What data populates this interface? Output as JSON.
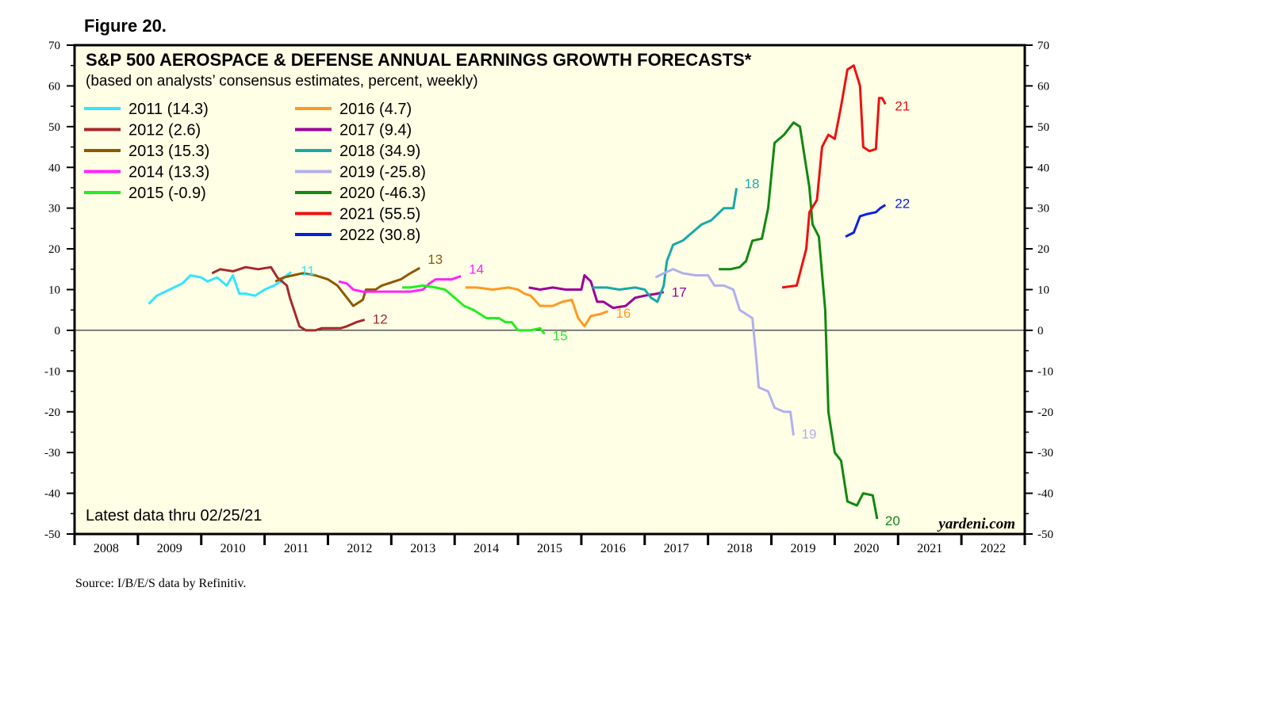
{
  "figure_label": "Figure 20.",
  "source": "Source: I/B/E/S data by Refinitiv.",
  "chart_data": {
    "type": "line",
    "title": "S&P 500 AEROSPACE & DEFENSE ANNUAL EARNINGS GROWTH FORECASTS*",
    "subtitle": "(based on analysts’ consensus estimates, percent, weekly)",
    "note": "Latest data thru 02/25/21",
    "watermark": "yardeni.com",
    "xlabel": "",
    "ylabel": "",
    "xlim": [
      2008,
      2023
    ],
    "ylim": [
      -50,
      70
    ],
    "yticks": [
      "70",
      "60",
      "50",
      "40",
      "30",
      "20",
      "10",
      "0",
      "-10",
      "-20",
      "-30",
      "-40",
      "-50"
    ],
    "xticks": [
      "2008",
      "2009",
      "2010",
      "2011",
      "2012",
      "2013",
      "2014",
      "2015",
      "2016",
      "2017",
      "2018",
      "2019",
      "2020",
      "2021",
      "2022"
    ],
    "zero_line": true,
    "legend_position": "top-left",
    "series": [
      {
        "name": "2011 (14.3)",
        "end_label": "11",
        "color": "#33e5ff",
        "points": [
          [
            2009.17,
            6.5
          ],
          [
            2009.3,
            8.5
          ],
          [
            2009.5,
            10
          ],
          [
            2009.7,
            11.5
          ],
          [
            2009.83,
            13.5
          ],
          [
            2010.0,
            13
          ],
          [
            2010.1,
            12
          ],
          [
            2010.25,
            13
          ],
          [
            2010.4,
            11
          ],
          [
            2010.5,
            13.5
          ],
          [
            2010.6,
            9
          ],
          [
            2010.7,
            9
          ],
          [
            2010.85,
            8.5
          ],
          [
            2011.0,
            10
          ],
          [
            2011.15,
            11
          ],
          [
            2011.25,
            12
          ],
          [
            2011.35,
            13.5
          ],
          [
            2011.42,
            14.3
          ]
        ]
      },
      {
        "name": "2012 (2.6)",
        "end_label": "12",
        "color": "#a52a2a",
        "points": [
          [
            2010.17,
            14
          ],
          [
            2010.3,
            15
          ],
          [
            2010.5,
            14.5
          ],
          [
            2010.7,
            15.5
          ],
          [
            2010.9,
            15
          ],
          [
            2011.1,
            15.5
          ],
          [
            2011.2,
            13
          ],
          [
            2011.35,
            11
          ],
          [
            2011.4,
            8
          ],
          [
            2011.55,
            1
          ],
          [
            2011.65,
            0
          ],
          [
            2011.8,
            0
          ],
          [
            2011.9,
            0.5
          ],
          [
            2012.05,
            0.5
          ],
          [
            2012.2,
            0.5
          ],
          [
            2012.3,
            1
          ],
          [
            2012.45,
            2
          ],
          [
            2012.58,
            2.6
          ]
        ]
      },
      {
        "name": "2013 (15.3)",
        "end_label": "13",
        "color": "#8b5a00",
        "points": [
          [
            2011.17,
            12
          ],
          [
            2011.3,
            13
          ],
          [
            2011.45,
            13.5
          ],
          [
            2011.6,
            14
          ],
          [
            2011.8,
            13.5
          ],
          [
            2012.0,
            12.5
          ],
          [
            2012.15,
            11
          ],
          [
            2012.3,
            8
          ],
          [
            2012.4,
            6
          ],
          [
            2012.55,
            7.5
          ],
          [
            2012.6,
            10
          ],
          [
            2012.75,
            10
          ],
          [
            2012.85,
            11
          ],
          [
            2013.05,
            12
          ],
          [
            2013.15,
            12.5
          ],
          [
            2013.3,
            14
          ],
          [
            2013.45,
            15.3
          ]
        ]
      },
      {
        "name": "2014 (13.3)",
        "end_label": "14",
        "color": "#ff22ff",
        "points": [
          [
            2012.17,
            12
          ],
          [
            2012.3,
            11.5
          ],
          [
            2012.4,
            10
          ],
          [
            2012.55,
            9.5
          ],
          [
            2012.8,
            9.5
          ],
          [
            2013.0,
            9.5
          ],
          [
            2013.3,
            9.5
          ],
          [
            2013.5,
            10
          ],
          [
            2013.6,
            11.5
          ],
          [
            2013.7,
            12.5
          ],
          [
            2013.95,
            12.5
          ],
          [
            2014.1,
            13.3
          ]
        ]
      },
      {
        "name": "2015 (-0.9)",
        "end_label": "15",
        "color": "#22ee22",
        "points": [
          [
            2013.17,
            10.5
          ],
          [
            2013.3,
            10.5
          ],
          [
            2013.5,
            11
          ],
          [
            2013.7,
            10.5
          ],
          [
            2013.85,
            10
          ],
          [
            2014.0,
            8
          ],
          [
            2014.15,
            6
          ],
          [
            2014.3,
            5
          ],
          [
            2014.5,
            3
          ],
          [
            2014.7,
            3
          ],
          [
            2014.8,
            2
          ],
          [
            2014.9,
            2
          ],
          [
            2015.0,
            0
          ],
          [
            2015.2,
            0
          ],
          [
            2015.35,
            0.5
          ],
          [
            2015.42,
            -0.9
          ]
        ]
      },
      {
        "name": "2016 (4.7)",
        "end_label": "16",
        "color": "#ff9922",
        "points": [
          [
            2014.17,
            10.5
          ],
          [
            2014.35,
            10.5
          ],
          [
            2014.6,
            10
          ],
          [
            2014.85,
            10.5
          ],
          [
            2015.0,
            10
          ],
          [
            2015.1,
            9
          ],
          [
            2015.2,
            8.5
          ],
          [
            2015.35,
            6
          ],
          [
            2015.55,
            6
          ],
          [
            2015.7,
            7
          ],
          [
            2015.85,
            7.5
          ],
          [
            2015.95,
            3
          ],
          [
            2016.05,
            1
          ],
          [
            2016.15,
            3.5
          ],
          [
            2016.3,
            4
          ],
          [
            2016.42,
            4.7
          ]
        ]
      },
      {
        "name": "2017 (9.4)",
        "end_label": "17",
        "color": "#990099",
        "points": [
          [
            2015.17,
            10.5
          ],
          [
            2015.35,
            10
          ],
          [
            2015.55,
            10.5
          ],
          [
            2015.75,
            10
          ],
          [
            2016.0,
            10
          ],
          [
            2016.05,
            13.5
          ],
          [
            2016.15,
            12
          ],
          [
            2016.25,
            7
          ],
          [
            2016.35,
            7
          ],
          [
            2016.5,
            5.5
          ],
          [
            2016.7,
            6
          ],
          [
            2016.85,
            8
          ],
          [
            2017.0,
            8.5
          ],
          [
            2017.2,
            9
          ],
          [
            2017.3,
            9.4
          ]
        ]
      },
      {
        "name": "2018 (34.9)",
        "end_label": "18",
        "color": "#1aa8a8",
        "points": [
          [
            2016.17,
            10.5
          ],
          [
            2016.4,
            10.5
          ],
          [
            2016.6,
            10
          ],
          [
            2016.85,
            10.5
          ],
          [
            2017.0,
            10
          ],
          [
            2017.1,
            8
          ],
          [
            2017.2,
            7
          ],
          [
            2017.3,
            11
          ],
          [
            2017.35,
            17
          ],
          [
            2017.45,
            21
          ],
          [
            2017.6,
            22
          ],
          [
            2017.75,
            24
          ],
          [
            2017.9,
            26
          ],
          [
            2018.05,
            27
          ],
          [
            2018.25,
            30
          ],
          [
            2018.4,
            30
          ],
          [
            2018.45,
            34.9
          ]
        ]
      },
      {
        "name": "2019 (-25.8)",
        "end_label": "19",
        "color": "#b0b0ee",
        "points": [
          [
            2017.17,
            13
          ],
          [
            2017.3,
            14
          ],
          [
            2017.45,
            15
          ],
          [
            2017.6,
            14
          ],
          [
            2017.8,
            13.5
          ],
          [
            2018.0,
            13.5
          ],
          [
            2018.1,
            11
          ],
          [
            2018.25,
            11
          ],
          [
            2018.4,
            10
          ],
          [
            2018.5,
            5
          ],
          [
            2018.6,
            4
          ],
          [
            2018.7,
            3
          ],
          [
            2018.75,
            -5
          ],
          [
            2018.8,
            -14
          ],
          [
            2018.95,
            -15
          ],
          [
            2019.05,
            -19
          ],
          [
            2019.2,
            -20
          ],
          [
            2019.3,
            -20
          ],
          [
            2019.35,
            -25.8
          ]
        ]
      },
      {
        "name": "2020 (-46.3)",
        "end_label": "20",
        "color": "#118811",
        "points": [
          [
            2018.17,
            15
          ],
          [
            2018.35,
            15
          ],
          [
            2018.5,
            15.5
          ],
          [
            2018.6,
            17
          ],
          [
            2018.7,
            22
          ],
          [
            2018.85,
            22.5
          ],
          [
            2018.95,
            30
          ],
          [
            2019.05,
            46
          ],
          [
            2019.2,
            48
          ],
          [
            2019.35,
            51
          ],
          [
            2019.45,
            50
          ],
          [
            2019.5,
            45
          ],
          [
            2019.6,
            35
          ],
          [
            2019.65,
            26
          ],
          [
            2019.75,
            23
          ],
          [
            2019.85,
            5
          ],
          [
            2019.9,
            -20
          ],
          [
            2020.0,
            -30
          ],
          [
            2020.1,
            -32
          ],
          [
            2020.2,
            -42
          ],
          [
            2020.35,
            -43
          ],
          [
            2020.45,
            -40
          ],
          [
            2020.6,
            -40.5
          ],
          [
            2020.67,
            -46.3
          ]
        ]
      },
      {
        "name": "2021 (55.5)",
        "end_label": "21",
        "color": "#ee1111",
        "points": [
          [
            2019.17,
            10.5
          ],
          [
            2019.4,
            11
          ],
          [
            2019.55,
            20
          ],
          [
            2019.6,
            29
          ],
          [
            2019.72,
            32
          ],
          [
            2019.8,
            45
          ],
          [
            2019.9,
            48
          ],
          [
            2020.0,
            47
          ],
          [
            2020.1,
            55
          ],
          [
            2020.2,
            64
          ],
          [
            2020.3,
            65
          ],
          [
            2020.4,
            60
          ],
          [
            2020.45,
            45
          ],
          [
            2020.55,
            44
          ],
          [
            2020.65,
            44.5
          ],
          [
            2020.7,
            57
          ],
          [
            2020.75,
            57
          ],
          [
            2020.8,
            55.5
          ]
        ]
      },
      {
        "name": "2022 (30.8)",
        "end_label": "22",
        "color": "#0a1fe6",
        "points": [
          [
            2020.17,
            23
          ],
          [
            2020.3,
            24
          ],
          [
            2020.4,
            28
          ],
          [
            2020.5,
            28.5
          ],
          [
            2020.65,
            29
          ],
          [
            2020.72,
            30
          ],
          [
            2020.8,
            30.8
          ]
        ]
      }
    ]
  }
}
